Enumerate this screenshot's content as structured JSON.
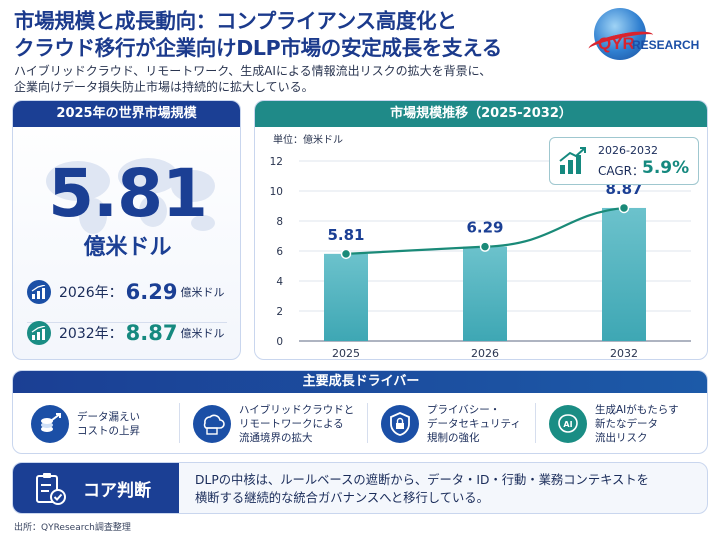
{
  "header": {
    "title_line1": "市場規模と成長動向：コンプライアンス高度化と",
    "title_line2": "クラウド移行が企業向けDLP市場の安定成長を支える",
    "subtitle_line1": "ハイブリッドクラウド、リモートワーク、生成AIによる情報流出リスクの拡大を背景に、",
    "subtitle_line2": "企業向けデータ損失防止市場は持続的に拡大している。",
    "logo_qyr": "QYR",
    "logo_research": "RESEARCH"
  },
  "market_size": {
    "heading": "2025年の世界市場規模",
    "value": "5.81",
    "unit": "億米ドル",
    "stats": [
      {
        "year": "2026年：",
        "value": "6.29",
        "unit": "億米ドル",
        "icon": "bar-growth-icon"
      },
      {
        "year": "2032年：",
        "value": "8.87",
        "unit": "億米ドル",
        "icon": "bar-growth-icon"
      }
    ]
  },
  "chart_data": {
    "type": "bar",
    "title": "市場規模推移（2025-2032）",
    "unit_label": "単位：億米ドル",
    "categories": [
      "2025",
      "2026",
      "2032"
    ],
    "values": [
      5.81,
      6.29,
      8.87
    ],
    "value_labels": [
      "5.81",
      "6.29",
      "8.87"
    ],
    "yticks": [
      "0",
      "2",
      "4",
      "6",
      "8",
      "10",
      "12"
    ],
    "ylim": [
      0,
      12
    ],
    "grid": true,
    "trend_line": true,
    "colors": {
      "bar": "#3ea7b4",
      "bar_top": "#6cc2cc",
      "line": "#1a8a78",
      "label": "#1b3f94"
    }
  },
  "cagr": {
    "period": "2026-2032",
    "label": "CAGR：",
    "value": "5.9%"
  },
  "drivers": {
    "heading": "主要成長ドライバー",
    "items": [
      {
        "line1": "データ漏えい",
        "line2": "コストの上昇",
        "line3": "",
        "icon": "coin-growth-icon"
      },
      {
        "line1": "ハイブリッドクラウドと",
        "line2": "リモートワークによる",
        "line3": "流通境界の拡大",
        "icon": "cloud-laptop-icon"
      },
      {
        "line1": "プライバシー・",
        "line2": "データセキュリティ",
        "line3": "規制の強化",
        "icon": "shield-lock-icon"
      },
      {
        "line1": "生成AIがもたらす",
        "line2": "新たなデータ",
        "line3": "流出リスク",
        "icon": "ai-brain-icon"
      }
    ]
  },
  "core": {
    "label": "コア判断",
    "text_line1": "DLPの中核は、ルールベースの遮断から、データ・ID・行動・業務コンテキストを",
    "text_line2": "横断する継続的な統合ガバナンスへと移行している。"
  },
  "source": "出所：QYResearch調査整理",
  "colors": {
    "navy": "#1b3f94",
    "teal": "#1f8a88"
  }
}
